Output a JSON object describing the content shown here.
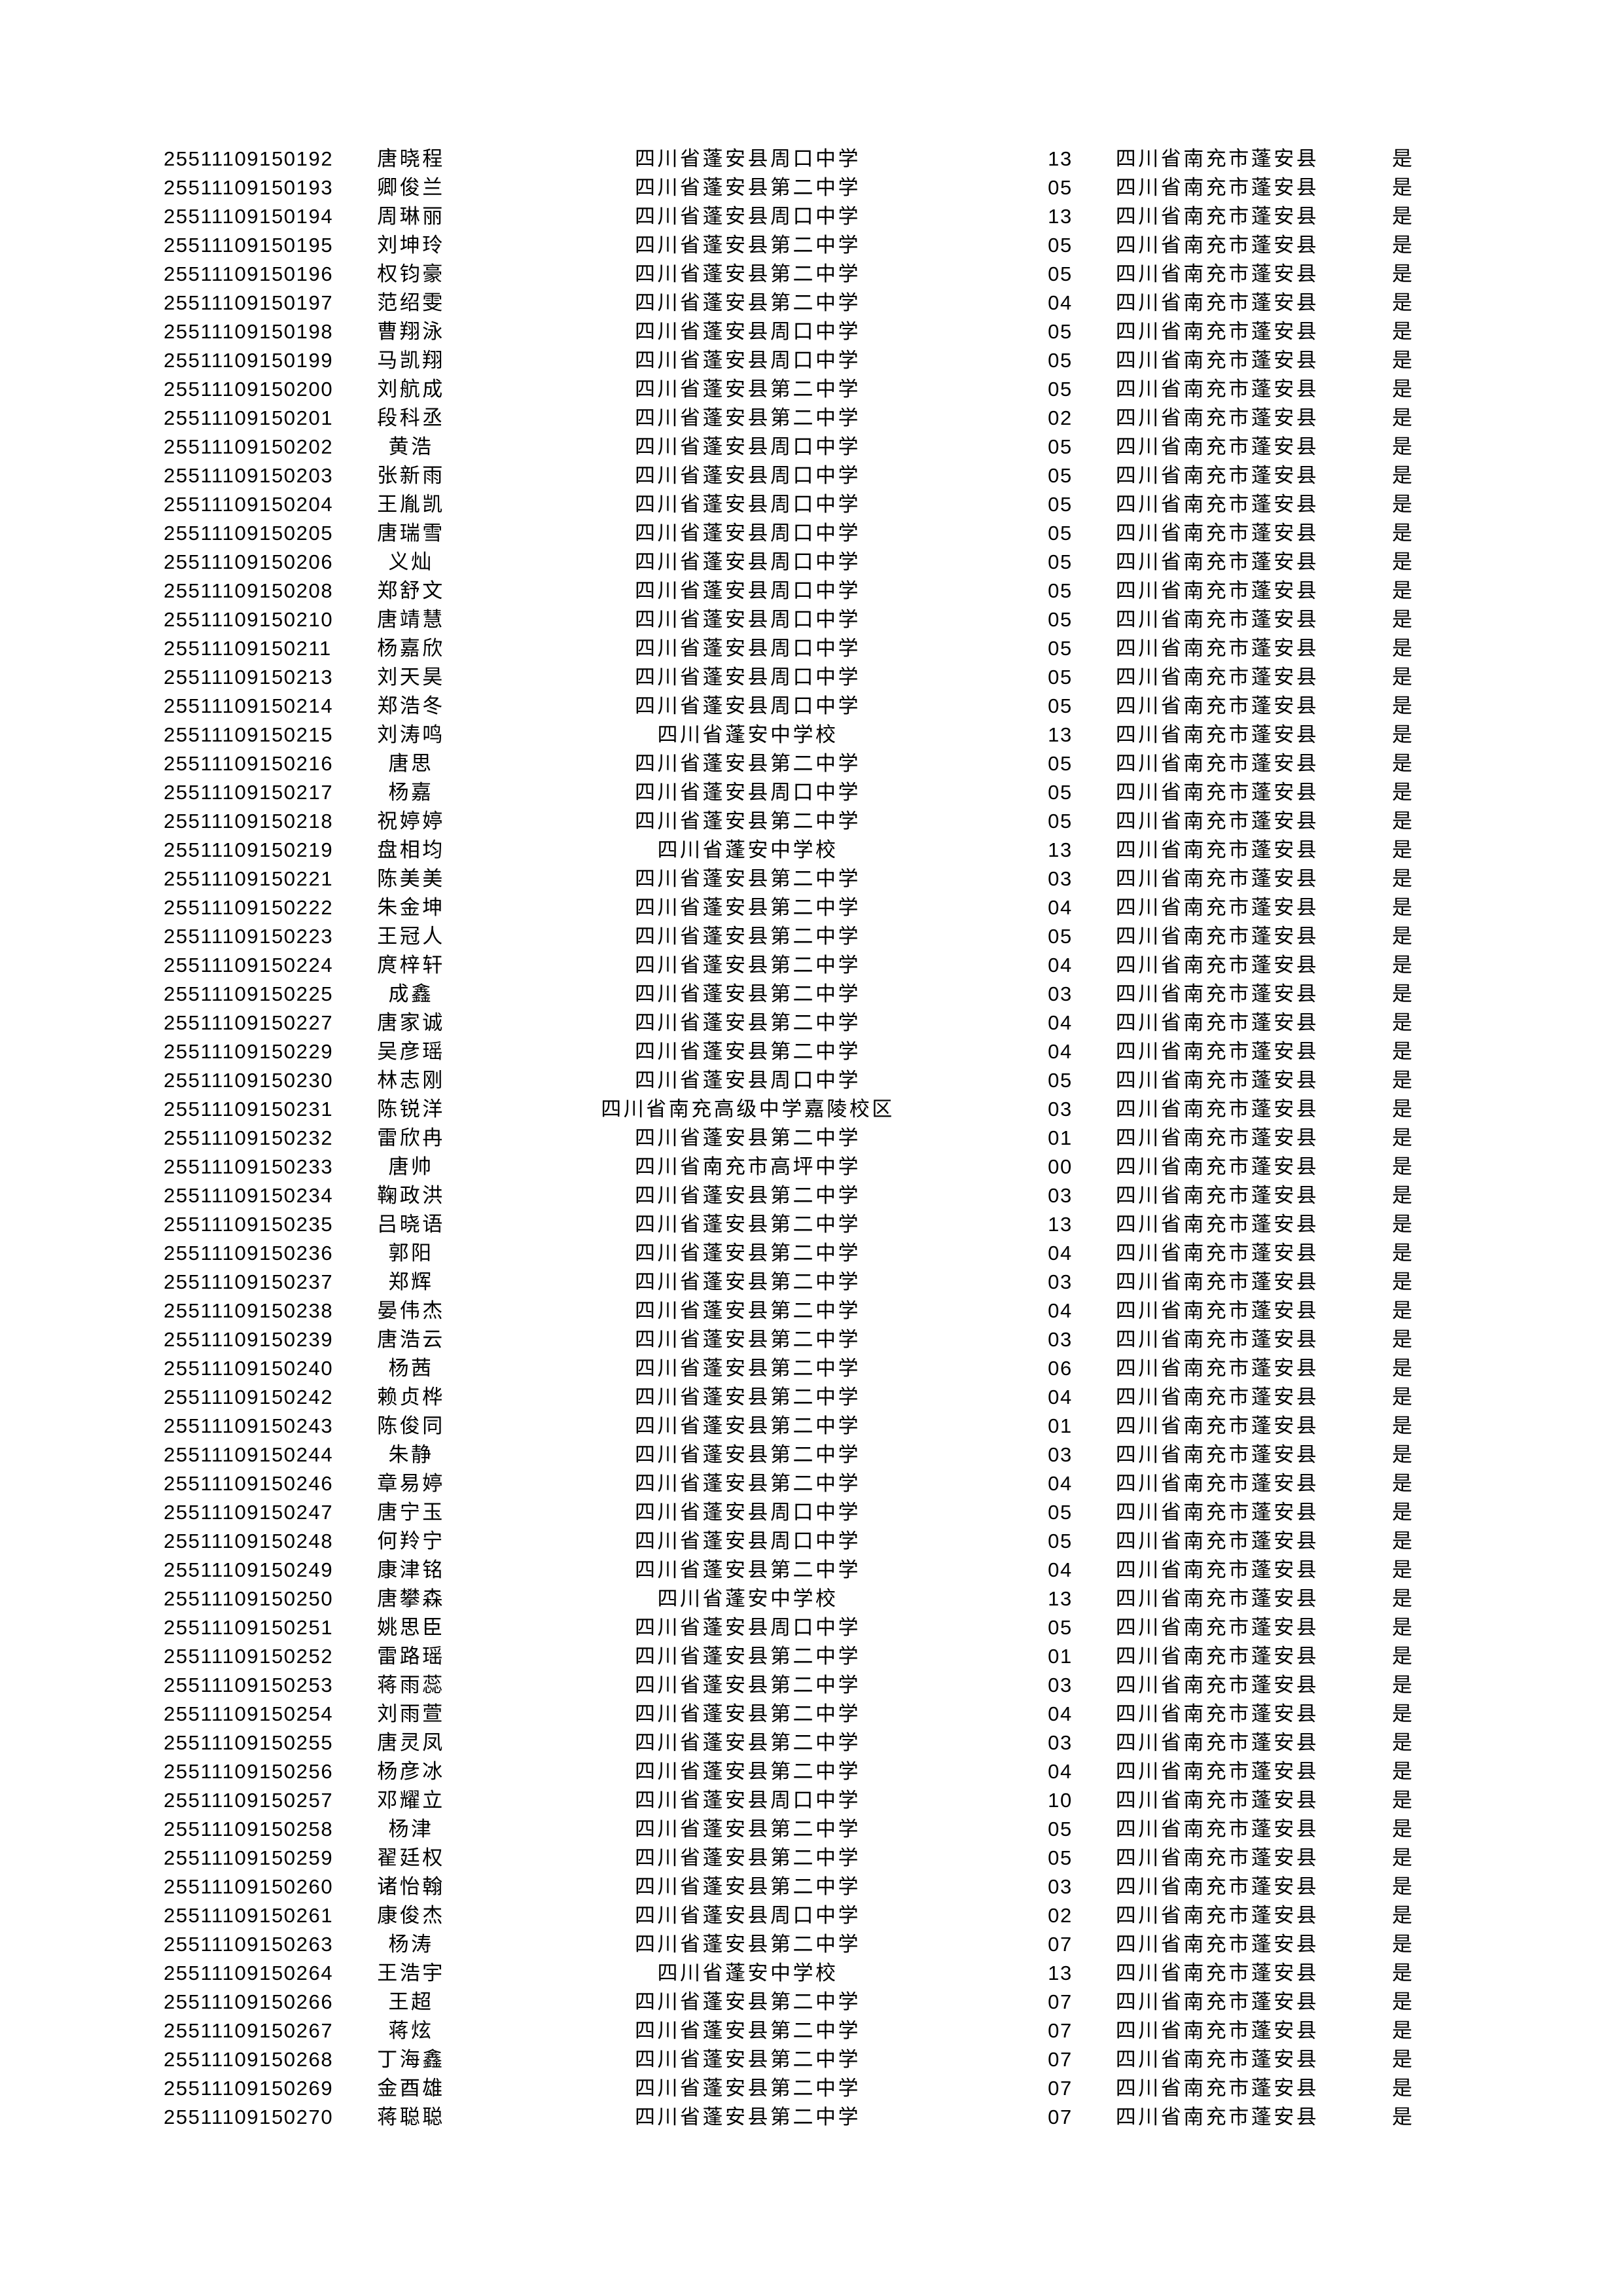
{
  "page": {
    "background_color": "#ffffff",
    "text_color": "#000000"
  },
  "table": {
    "district_constant": "四川省南充市蓬安县",
    "flag_constant": "是",
    "rows": [
      {
        "id": "25511109150192",
        "name": "唐晓程",
        "school": "四川省蓬安县周口中学",
        "code": "13",
        "district": "四川省南充市蓬安县",
        "flag": "是"
      },
      {
        "id": "25511109150193",
        "name": "卿俊兰",
        "school": "四川省蓬安县第二中学",
        "code": "05",
        "district": "四川省南充市蓬安县",
        "flag": "是"
      },
      {
        "id": "25511109150194",
        "name": "周琳丽",
        "school": "四川省蓬安县周口中学",
        "code": "13",
        "district": "四川省南充市蓬安县",
        "flag": "是"
      },
      {
        "id": "25511109150195",
        "name": "刘坤玲",
        "school": "四川省蓬安县第二中学",
        "code": "05",
        "district": "四川省南充市蓬安县",
        "flag": "是"
      },
      {
        "id": "25511109150196",
        "name": "权钧豪",
        "school": "四川省蓬安县第二中学",
        "code": "05",
        "district": "四川省南充市蓬安县",
        "flag": "是"
      },
      {
        "id": "25511109150197",
        "name": "范绍雯",
        "school": "四川省蓬安县第二中学",
        "code": "04",
        "district": "四川省南充市蓬安县",
        "flag": "是"
      },
      {
        "id": "25511109150198",
        "name": "曹翔泳",
        "school": "四川省蓬安县周口中学",
        "code": "05",
        "district": "四川省南充市蓬安县",
        "flag": "是"
      },
      {
        "id": "25511109150199",
        "name": "马凯翔",
        "school": "四川省蓬安县周口中学",
        "code": "05",
        "district": "四川省南充市蓬安县",
        "flag": "是"
      },
      {
        "id": "25511109150200",
        "name": "刘航成",
        "school": "四川省蓬安县第二中学",
        "code": "05",
        "district": "四川省南充市蓬安县",
        "flag": "是"
      },
      {
        "id": "25511109150201",
        "name": "段科丞",
        "school": "四川省蓬安县第二中学",
        "code": "02",
        "district": "四川省南充市蓬安县",
        "flag": "是"
      },
      {
        "id": "25511109150202",
        "name": "黄浩",
        "school": "四川省蓬安县周口中学",
        "code": "05",
        "district": "四川省南充市蓬安县",
        "flag": "是"
      },
      {
        "id": "25511109150203",
        "name": "张新雨",
        "school": "四川省蓬安县周口中学",
        "code": "05",
        "district": "四川省南充市蓬安县",
        "flag": "是"
      },
      {
        "id": "25511109150204",
        "name": "王胤凯",
        "school": "四川省蓬安县周口中学",
        "code": "05",
        "district": "四川省南充市蓬安县",
        "flag": "是"
      },
      {
        "id": "25511109150205",
        "name": "唐瑞雪",
        "school": "四川省蓬安县周口中学",
        "code": "05",
        "district": "四川省南充市蓬安县",
        "flag": "是"
      },
      {
        "id": "25511109150206",
        "name": "义灿",
        "school": "四川省蓬安县周口中学",
        "code": "05",
        "district": "四川省南充市蓬安县",
        "flag": "是"
      },
      {
        "id": "25511109150208",
        "name": "郑舒文",
        "school": "四川省蓬安县周口中学",
        "code": "05",
        "district": "四川省南充市蓬安县",
        "flag": "是"
      },
      {
        "id": "25511109150210",
        "name": "唐靖慧",
        "school": "四川省蓬安县周口中学",
        "code": "05",
        "district": "四川省南充市蓬安县",
        "flag": "是"
      },
      {
        "id": "25511109150211",
        "name": "杨嘉欣",
        "school": "四川省蓬安县周口中学",
        "code": "05",
        "district": "四川省南充市蓬安县",
        "flag": "是"
      },
      {
        "id": "25511109150213",
        "name": "刘天昊",
        "school": "四川省蓬安县周口中学",
        "code": "05",
        "district": "四川省南充市蓬安县",
        "flag": "是"
      },
      {
        "id": "25511109150214",
        "name": "郑浩冬",
        "school": "四川省蓬安县周口中学",
        "code": "05",
        "district": "四川省南充市蓬安县",
        "flag": "是"
      },
      {
        "id": "25511109150215",
        "name": "刘涛鸣",
        "school": "四川省蓬安中学校",
        "code": "13",
        "district": "四川省南充市蓬安县",
        "flag": "是"
      },
      {
        "id": "25511109150216",
        "name": "唐思",
        "school": "四川省蓬安县第二中学",
        "code": "05",
        "district": "四川省南充市蓬安县",
        "flag": "是"
      },
      {
        "id": "25511109150217",
        "name": "杨嘉",
        "school": "四川省蓬安县周口中学",
        "code": "05",
        "district": "四川省南充市蓬安县",
        "flag": "是"
      },
      {
        "id": "25511109150218",
        "name": "祝婷婷",
        "school": "四川省蓬安县第二中学",
        "code": "05",
        "district": "四川省南充市蓬安县",
        "flag": "是"
      },
      {
        "id": "25511109150219",
        "name": "盘相均",
        "school": "四川省蓬安中学校",
        "code": "13",
        "district": "四川省南充市蓬安县",
        "flag": "是"
      },
      {
        "id": "25511109150221",
        "name": "陈美美",
        "school": "四川省蓬安县第二中学",
        "code": "03",
        "district": "四川省南充市蓬安县",
        "flag": "是"
      },
      {
        "id": "25511109150222",
        "name": "朱金坤",
        "school": "四川省蓬安县第二中学",
        "code": "04",
        "district": "四川省南充市蓬安县",
        "flag": "是"
      },
      {
        "id": "25511109150223",
        "name": "王冠人",
        "school": "四川省蓬安县第二中学",
        "code": "05",
        "district": "四川省南充市蓬安县",
        "flag": "是"
      },
      {
        "id": "25511109150224",
        "name": "庹梓轩",
        "school": "四川省蓬安县第二中学",
        "code": "04",
        "district": "四川省南充市蓬安县",
        "flag": "是"
      },
      {
        "id": "25511109150225",
        "name": "成鑫",
        "school": "四川省蓬安县第二中学",
        "code": "03",
        "district": "四川省南充市蓬安县",
        "flag": "是"
      },
      {
        "id": "25511109150227",
        "name": "唐家诚",
        "school": "四川省蓬安县第二中学",
        "code": "04",
        "district": "四川省南充市蓬安县",
        "flag": "是"
      },
      {
        "id": "25511109150229",
        "name": "吴彦瑶",
        "school": "四川省蓬安县第二中学",
        "code": "04",
        "district": "四川省南充市蓬安县",
        "flag": "是"
      },
      {
        "id": "25511109150230",
        "name": "林志刚",
        "school": "四川省蓬安县周口中学",
        "code": "05",
        "district": "四川省南充市蓬安县",
        "flag": "是"
      },
      {
        "id": "25511109150231",
        "name": "陈锐洋",
        "school": "四川省南充高级中学嘉陵校区",
        "code": "03",
        "district": "四川省南充市蓬安县",
        "flag": "是"
      },
      {
        "id": "25511109150232",
        "name": "雷欣冉",
        "school": "四川省蓬安县第二中学",
        "code": "01",
        "district": "四川省南充市蓬安县",
        "flag": "是"
      },
      {
        "id": "25511109150233",
        "name": "唐帅",
        "school": "四川省南充市高坪中学",
        "code": "00",
        "district": "四川省南充市蓬安县",
        "flag": "是"
      },
      {
        "id": "25511109150234",
        "name": "鞠政洪",
        "school": "四川省蓬安县第二中学",
        "code": "03",
        "district": "四川省南充市蓬安县",
        "flag": "是"
      },
      {
        "id": "25511109150235",
        "name": "吕晓语",
        "school": "四川省蓬安县第二中学",
        "code": "13",
        "district": "四川省南充市蓬安县",
        "flag": "是"
      },
      {
        "id": "25511109150236",
        "name": "郭阳",
        "school": "四川省蓬安县第二中学",
        "code": "04",
        "district": "四川省南充市蓬安县",
        "flag": "是"
      },
      {
        "id": "25511109150237",
        "name": "郑辉",
        "school": "四川省蓬安县第二中学",
        "code": "03",
        "district": "四川省南充市蓬安县",
        "flag": "是"
      },
      {
        "id": "25511109150238",
        "name": "晏伟杰",
        "school": "四川省蓬安县第二中学",
        "code": "04",
        "district": "四川省南充市蓬安县",
        "flag": "是"
      },
      {
        "id": "25511109150239",
        "name": "唐浩云",
        "school": "四川省蓬安县第二中学",
        "code": "03",
        "district": "四川省南充市蓬安县",
        "flag": "是"
      },
      {
        "id": "25511109150240",
        "name": "杨茜",
        "school": "四川省蓬安县第二中学",
        "code": "06",
        "district": "四川省南充市蓬安县",
        "flag": "是"
      },
      {
        "id": "25511109150242",
        "name": "赖贞桦",
        "school": "四川省蓬安县第二中学",
        "code": "04",
        "district": "四川省南充市蓬安县",
        "flag": "是"
      },
      {
        "id": "25511109150243",
        "name": "陈俊同",
        "school": "四川省蓬安县第二中学",
        "code": "01",
        "district": "四川省南充市蓬安县",
        "flag": "是"
      },
      {
        "id": "25511109150244",
        "name": "朱静",
        "school": "四川省蓬安县第二中学",
        "code": "03",
        "district": "四川省南充市蓬安县",
        "flag": "是"
      },
      {
        "id": "25511109150246",
        "name": "章易婷",
        "school": "四川省蓬安县第二中学",
        "code": "04",
        "district": "四川省南充市蓬安县",
        "flag": "是"
      },
      {
        "id": "25511109150247",
        "name": "唐宁玉",
        "school": "四川省蓬安县周口中学",
        "code": "05",
        "district": "四川省南充市蓬安县",
        "flag": "是"
      },
      {
        "id": "25511109150248",
        "name": "何羚宁",
        "school": "四川省蓬安县周口中学",
        "code": "05",
        "district": "四川省南充市蓬安县",
        "flag": "是"
      },
      {
        "id": "25511109150249",
        "name": "康津铭",
        "school": "四川省蓬安县第二中学",
        "code": "04",
        "district": "四川省南充市蓬安县",
        "flag": "是"
      },
      {
        "id": "25511109150250",
        "name": "唐攀森",
        "school": "四川省蓬安中学校",
        "code": "13",
        "district": "四川省南充市蓬安县",
        "flag": "是"
      },
      {
        "id": "25511109150251",
        "name": "姚思臣",
        "school": "四川省蓬安县周口中学",
        "code": "05",
        "district": "四川省南充市蓬安县",
        "flag": "是"
      },
      {
        "id": "25511109150252",
        "name": "雷路瑶",
        "school": "四川省蓬安县第二中学",
        "code": "01",
        "district": "四川省南充市蓬安县",
        "flag": "是"
      },
      {
        "id": "25511109150253",
        "name": "蒋雨蕊",
        "school": "四川省蓬安县第二中学",
        "code": "03",
        "district": "四川省南充市蓬安县",
        "flag": "是"
      },
      {
        "id": "25511109150254",
        "name": "刘雨萱",
        "school": "四川省蓬安县第二中学",
        "code": "04",
        "district": "四川省南充市蓬安县",
        "flag": "是"
      },
      {
        "id": "25511109150255",
        "name": "唐灵凤",
        "school": "四川省蓬安县第二中学",
        "code": "03",
        "district": "四川省南充市蓬安县",
        "flag": "是"
      },
      {
        "id": "25511109150256",
        "name": "杨彦冰",
        "school": "四川省蓬安县第二中学",
        "code": "04",
        "district": "四川省南充市蓬安县",
        "flag": "是"
      },
      {
        "id": "25511109150257",
        "name": "邓耀立",
        "school": "四川省蓬安县周口中学",
        "code": "10",
        "district": "四川省南充市蓬安县",
        "flag": "是"
      },
      {
        "id": "25511109150258",
        "name": "杨津",
        "school": "四川省蓬安县第二中学",
        "code": "05",
        "district": "四川省南充市蓬安县",
        "flag": "是"
      },
      {
        "id": "25511109150259",
        "name": "翟廷权",
        "school": "四川省蓬安县第二中学",
        "code": "05",
        "district": "四川省南充市蓬安县",
        "flag": "是"
      },
      {
        "id": "25511109150260",
        "name": "诸怡翰",
        "school": "四川省蓬安县第二中学",
        "code": "03",
        "district": "四川省南充市蓬安县",
        "flag": "是"
      },
      {
        "id": "25511109150261",
        "name": "康俊杰",
        "school": "四川省蓬安县周口中学",
        "code": "02",
        "district": "四川省南充市蓬安县",
        "flag": "是"
      },
      {
        "id": "25511109150263",
        "name": "杨涛",
        "school": "四川省蓬安县第二中学",
        "code": "07",
        "district": "四川省南充市蓬安县",
        "flag": "是"
      },
      {
        "id": "25511109150264",
        "name": "王浩宇",
        "school": "四川省蓬安中学校",
        "code": "13",
        "district": "四川省南充市蓬安县",
        "flag": "是"
      },
      {
        "id": "25511109150266",
        "name": "王超",
        "school": "四川省蓬安县第二中学",
        "code": "07",
        "district": "四川省南充市蓬安县",
        "flag": "是"
      },
      {
        "id": "25511109150267",
        "name": "蒋炫",
        "school": "四川省蓬安县第二中学",
        "code": "07",
        "district": "四川省南充市蓬安县",
        "flag": "是"
      },
      {
        "id": "25511109150268",
        "name": "丁海鑫",
        "school": "四川省蓬安县第二中学",
        "code": "07",
        "district": "四川省南充市蓬安县",
        "flag": "是"
      },
      {
        "id": "25511109150269",
        "name": "金酉雄",
        "school": "四川省蓬安县第二中学",
        "code": "07",
        "district": "四川省南充市蓬安县",
        "flag": "是"
      },
      {
        "id": "25511109150270",
        "name": "蒋聪聪",
        "school": "四川省蓬安县第二中学",
        "code": "07",
        "district": "四川省南充市蓬安县",
        "flag": "是"
      }
    ]
  }
}
